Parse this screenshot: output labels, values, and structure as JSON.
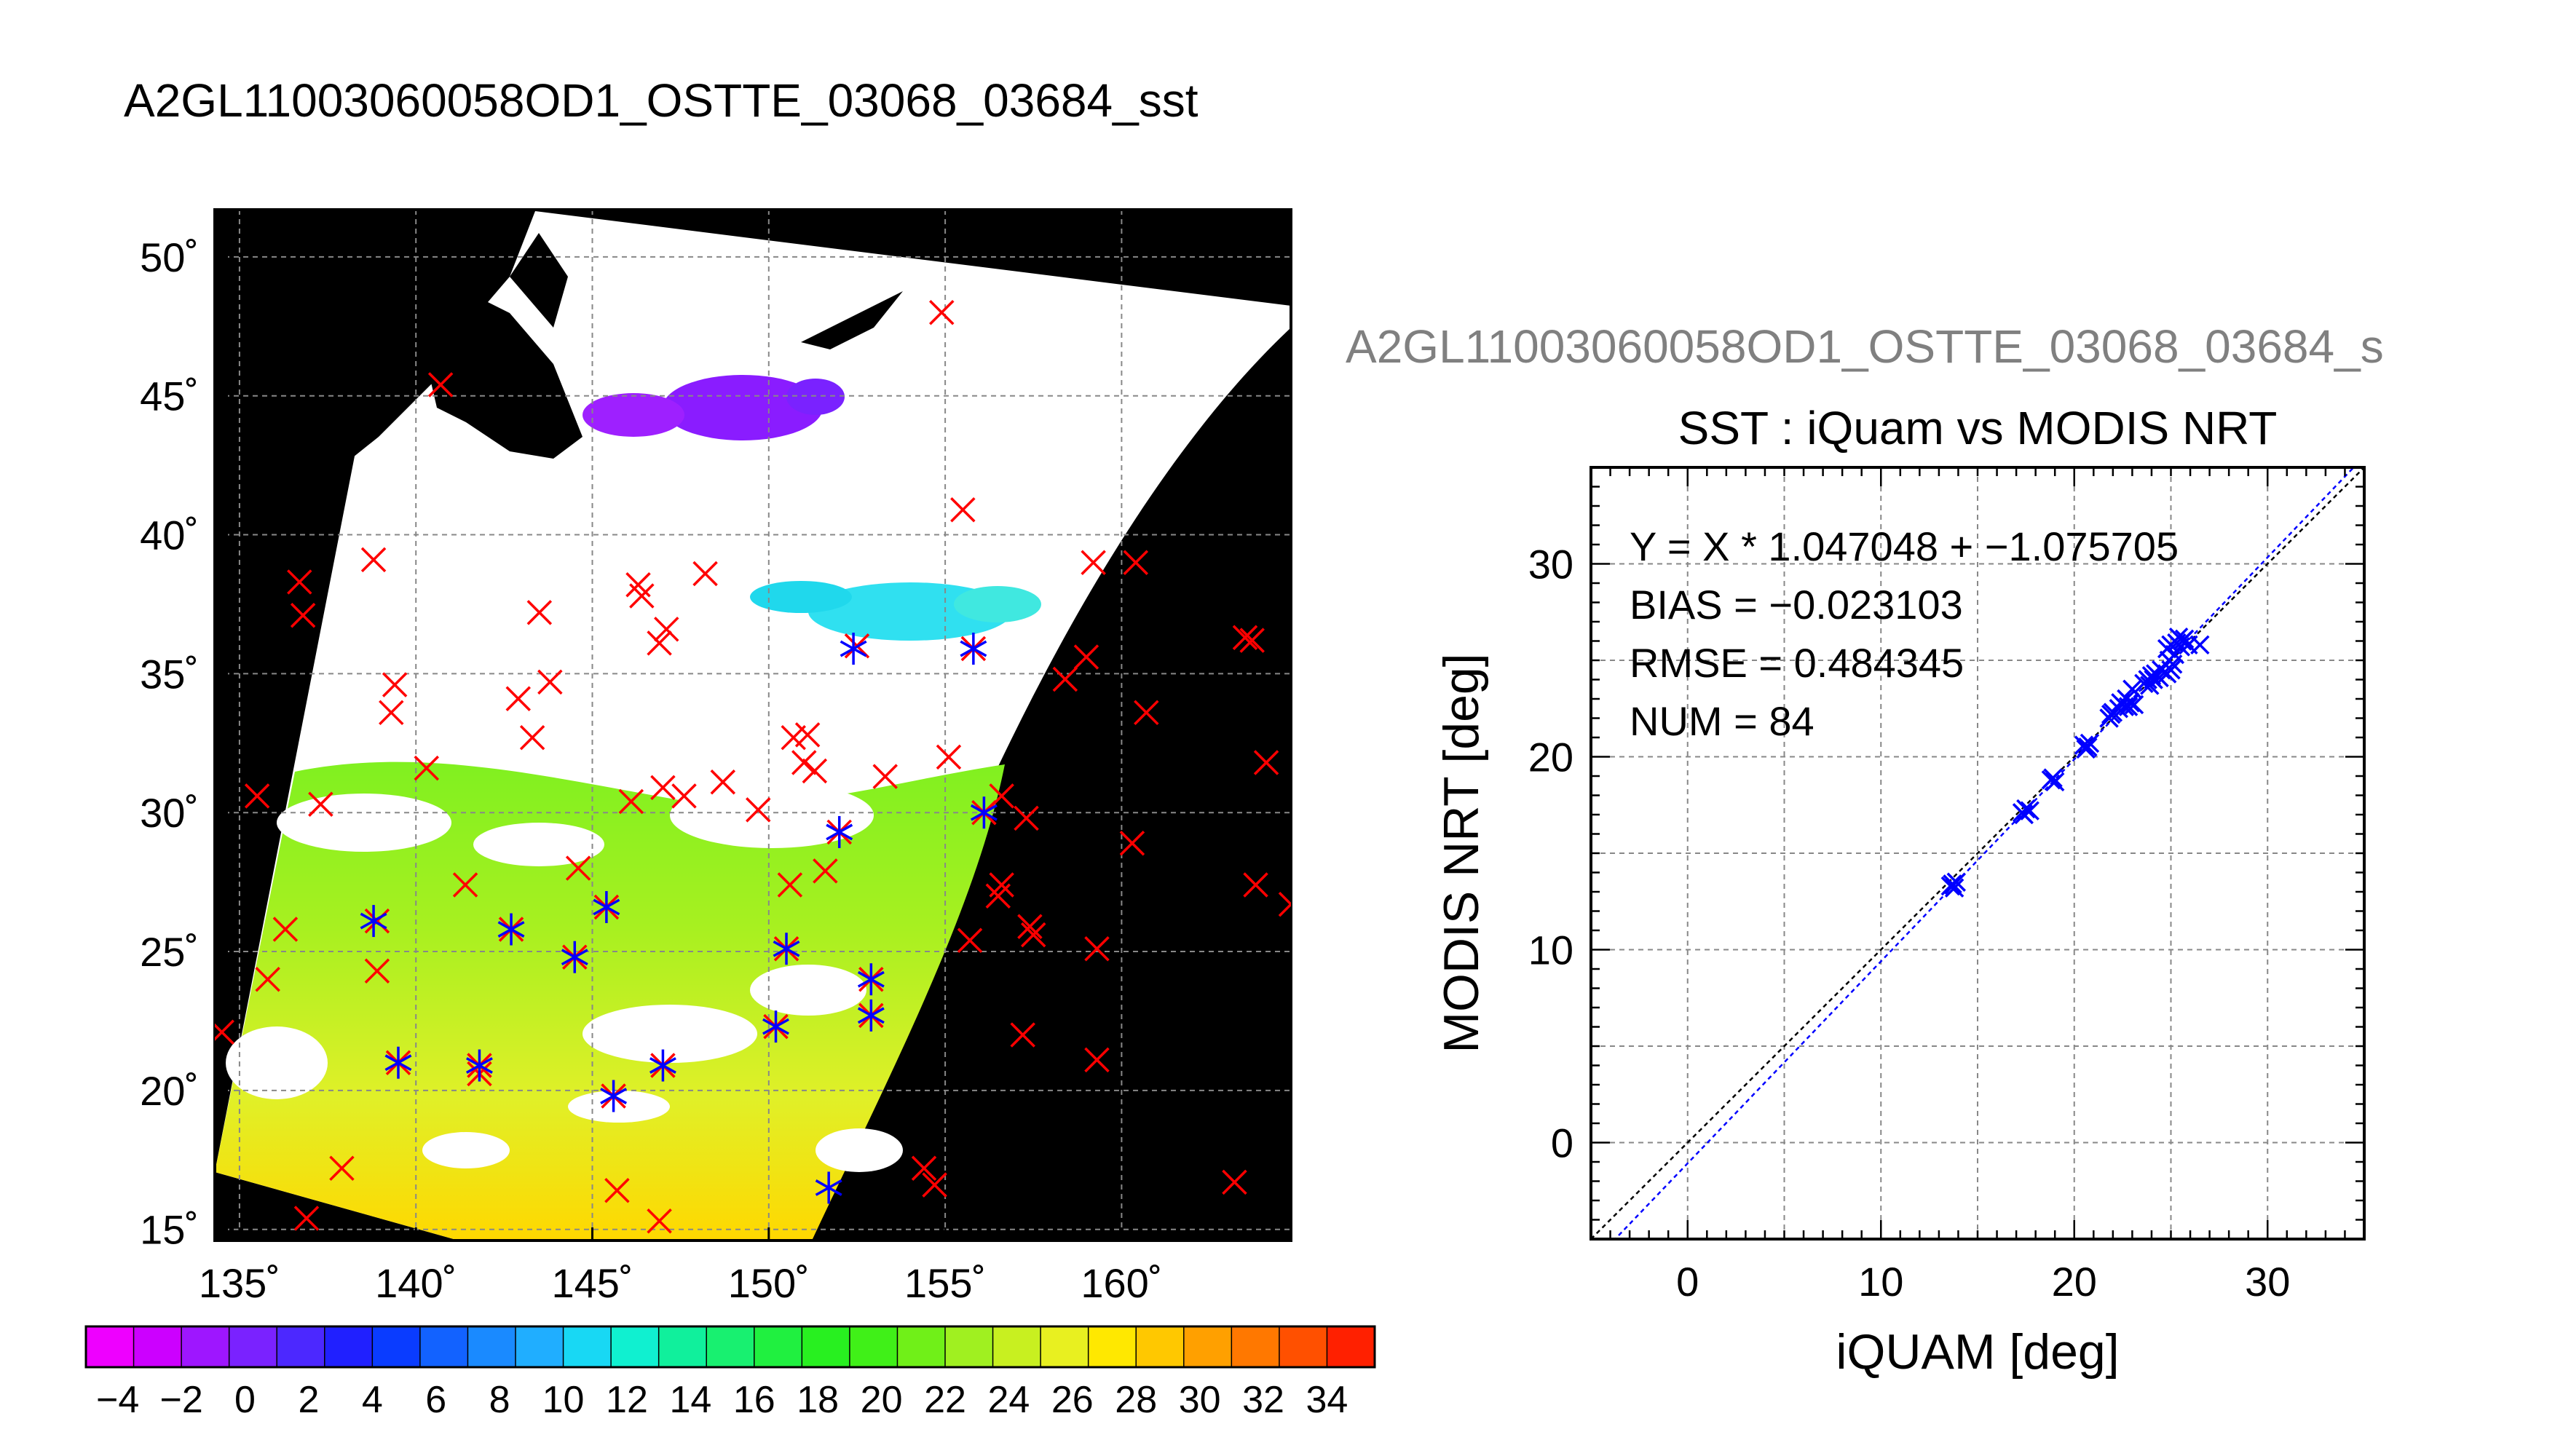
{
  "title": "A2GL11003060058OD1_OSTTE_03068_03684_sst",
  "map": {
    "xticks": [
      {
        "v": 135,
        "label": "135˚"
      },
      {
        "v": 140,
        "label": "140˚"
      },
      {
        "v": 145,
        "label": "145˚"
      },
      {
        "v": 150,
        "label": "150˚"
      },
      {
        "v": 155,
        "label": "155˚"
      },
      {
        "v": 160,
        "label": "160˚"
      }
    ],
    "yticks": [
      {
        "v": 50,
        "label": "50˚"
      },
      {
        "v": 45,
        "label": "45˚"
      },
      {
        "v": 40,
        "label": "40˚"
      },
      {
        "v": 35,
        "label": "35˚"
      },
      {
        "v": 30,
        "label": "30˚"
      },
      {
        "v": 25,
        "label": "25˚"
      },
      {
        "v": 20,
        "label": "20˚"
      },
      {
        "v": 15,
        "label": "15˚"
      }
    ],
    "lon_range": [
      134.3,
      164.8
    ],
    "lat_range": [
      14.6,
      51.7
    ],
    "swath_background": "#ffffff",
    "space_color": "#000000",
    "iquam_marker_color": "#ff0000",
    "matchup_marker_color": "#0000ff",
    "iquam_points": [
      [
        134.5,
        22.1
      ],
      [
        135.5,
        30.6
      ],
      [
        135.8,
        24.0
      ],
      [
        136.3,
        25.8
      ],
      [
        136.7,
        38.3
      ],
      [
        136.8,
        37.1
      ],
      [
        136.9,
        15.4
      ],
      [
        137.3,
        30.3
      ],
      [
        137.9,
        17.2
      ],
      [
        138.8,
        39.1
      ],
      [
        138.9,
        24.3
      ],
      [
        138.9,
        26.1
      ],
      [
        139.3,
        33.6
      ],
      [
        139.4,
        34.6
      ],
      [
        139.5,
        21.0
      ],
      [
        140.3,
        31.6
      ],
      [
        140.7,
        45.4
      ],
      [
        141.4,
        27.4
      ],
      [
        141.8,
        20.9
      ],
      [
        141.8,
        20.6
      ],
      [
        142.7,
        25.8
      ],
      [
        142.9,
        34.1
      ],
      [
        143.3,
        32.7
      ],
      [
        143.5,
        37.2
      ],
      [
        143.8,
        34.7
      ],
      [
        144.5,
        24.8
      ],
      [
        144.6,
        28.0
      ],
      [
        145.4,
        26.6
      ],
      [
        145.6,
        19.8
      ],
      [
        145.7,
        16.4
      ],
      [
        146.1,
        30.4
      ],
      [
        146.3,
        38.2
      ],
      [
        146.4,
        37.8
      ],
      [
        146.9,
        36.1
      ],
      [
        146.9,
        15.3
      ],
      [
        147.1,
        36.6
      ],
      [
        147.0,
        20.9
      ],
      [
        147.0,
        30.9
      ],
      [
        147.6,
        30.6
      ],
      [
        148.2,
        38.6
      ],
      [
        148.7,
        31.1
      ],
      [
        149.7,
        30.1
      ],
      [
        150.2,
        22.3
      ],
      [
        150.5,
        25.1
      ],
      [
        150.6,
        27.4
      ],
      [
        150.7,
        32.7
      ],
      [
        151.0,
        31.8
      ],
      [
        151.1,
        32.8
      ],
      [
        151.3,
        31.5
      ],
      [
        151.6,
        27.9
      ],
      [
        152.0,
        29.3
      ],
      [
        152.5,
        36.0
      ],
      [
        152.9,
        24.0
      ],
      [
        152.9,
        22.7
      ],
      [
        153.3,
        31.3
      ],
      [
        154.4,
        17.2
      ],
      [
        154.7,
        16.6
      ],
      [
        154.9,
        48.0
      ],
      [
        155.1,
        32.0
      ],
      [
        155.5,
        40.9
      ],
      [
        155.7,
        25.4
      ],
      [
        155.8,
        35.9
      ],
      [
        156.1,
        30.0
      ],
      [
        156.5,
        27.0
      ],
      [
        156.6,
        30.6
      ],
      [
        156.6,
        27.4
      ],
      [
        157.2,
        22.0
      ],
      [
        157.3,
        29.8
      ],
      [
        157.4,
        25.9
      ],
      [
        157.5,
        25.6
      ],
      [
        158.4,
        34.8
      ],
      [
        159.0,
        35.6
      ],
      [
        159.2,
        39.0
      ],
      [
        159.3,
        21.1
      ],
      [
        159.3,
        25.1
      ],
      [
        160.3,
        28.9
      ],
      [
        160.4,
        39.0
      ],
      [
        160.7,
        33.6
      ],
      [
        163.2,
        16.7
      ],
      [
        163.5,
        36.3
      ],
      [
        163.7,
        36.2
      ],
      [
        163.8,
        27.4
      ],
      [
        164.1,
        31.8
      ],
      [
        164.8,
        26.7
      ]
    ],
    "matchup_points": [
      [
        138.8,
        26.1
      ],
      [
        139.5,
        21.0
      ],
      [
        141.8,
        20.9
      ],
      [
        142.7,
        25.8
      ],
      [
        144.5,
        24.8
      ],
      [
        145.4,
        26.6
      ],
      [
        145.6,
        19.8
      ],
      [
        147.0,
        20.9
      ],
      [
        150.2,
        22.3
      ],
      [
        150.5,
        25.1
      ],
      [
        152.0,
        29.3
      ],
      [
        152.4,
        35.9
      ],
      [
        152.9,
        24.0
      ],
      [
        152.9,
        22.7
      ],
      [
        151.7,
        16.5
      ],
      [
        155.8,
        35.9
      ],
      [
        156.1,
        30.0
      ]
    ]
  },
  "colorbar": {
    "labels": [
      "−4",
      "−2",
      "0",
      "2",
      "4",
      "6",
      "8",
      "10",
      "12",
      "14",
      "16",
      "18",
      "20",
      "22",
      "24",
      "26",
      "28",
      "30",
      "32",
      "34"
    ],
    "colors": [
      "#ee00ff",
      "#cc00ff",
      "#9e16ff",
      "#7a22ff",
      "#4c28ff",
      "#2020ff",
      "#0a3cff",
      "#1262ff",
      "#1a8aff",
      "#20aeff",
      "#18d8f4",
      "#10f0d0",
      "#10f09c",
      "#18f070",
      "#20f040",
      "#28f020",
      "#40f018",
      "#70f018",
      "#a0f020",
      "#c8f020",
      "#e8f020",
      "#ffe800",
      "#ffc800",
      "#ffa000",
      "#ff7800",
      "#ff5000",
      "#ff2000"
    ],
    "range": [
      -5,
      35.5
    ]
  },
  "chart_data": {
    "type": "scatter",
    "supertitle": "A2GL11003060058OD1_OSTTE_03068_03684_s",
    "title": "SST : iQuam vs MODIS NRT",
    "xlabel": "iQUAM [deg]",
    "ylabel": "MODIS NRT [deg]",
    "xlim": [
      -5,
      35
    ],
    "ylim": [
      -5,
      35
    ],
    "xticks": [
      0,
      10,
      20,
      30
    ],
    "yticks": [
      0,
      10,
      20,
      30
    ],
    "grid": true,
    "marker_color": "#0000ff",
    "stats": [
      "Y = X * 1.047048 + −1.075705",
      "BIAS = −0.023103",
      "RMSE = 0.484345",
      "NUM = 84"
    ],
    "fit": {
      "slope": 1.047048,
      "intercept": -1.075705
    },
    "points": [
      [
        13.7,
        13.4
      ],
      [
        13.8,
        13.2
      ],
      [
        13.9,
        13.5
      ],
      [
        13.6,
        13.3
      ],
      [
        17.3,
        17.1
      ],
      [
        17.5,
        17.3
      ],
      [
        17.7,
        17.2
      ],
      [
        17.4,
        17.0
      ],
      [
        18.8,
        18.8
      ],
      [
        18.9,
        18.9
      ],
      [
        19.0,
        18.7
      ],
      [
        20.5,
        20.6
      ],
      [
        20.7,
        20.5
      ],
      [
        20.6,
        20.4
      ],
      [
        20.8,
        20.7
      ],
      [
        21.9,
        22.2
      ],
      [
        22.0,
        22.3
      ],
      [
        22.3,
        22.5
      ],
      [
        22.4,
        22.8
      ],
      [
        22.6,
        22.6
      ],
      [
        22.8,
        22.6
      ],
      [
        22.9,
        22.8
      ],
      [
        23.1,
        22.7
      ],
      [
        22.7,
        23.0
      ],
      [
        23.6,
        23.8
      ],
      [
        23.8,
        24.0
      ],
      [
        24.0,
        24.2
      ],
      [
        23.9,
        23.7
      ],
      [
        24.2,
        24.3
      ],
      [
        24.4,
        24.1
      ],
      [
        24.5,
        24.5
      ],
      [
        24.8,
        24.3
      ],
      [
        25.0,
        24.5
      ],
      [
        25.1,
        24.8
      ],
      [
        24.9,
        25.0
      ],
      [
        25.2,
        25.3
      ],
      [
        24.8,
        25.6
      ],
      [
        25.0,
        25.8
      ],
      [
        25.3,
        25.9
      ],
      [
        25.5,
        25.7
      ],
      [
        25.6,
        26.0
      ],
      [
        25.7,
        26.1
      ],
      [
        25.4,
        26.2
      ],
      [
        25.9,
        25.8
      ],
      [
        26.5,
        25.8
      ],
      [
        23.0,
        23.5
      ],
      [
        24.1,
        24.0
      ],
      [
        21.8,
        22.0
      ]
    ]
  }
}
